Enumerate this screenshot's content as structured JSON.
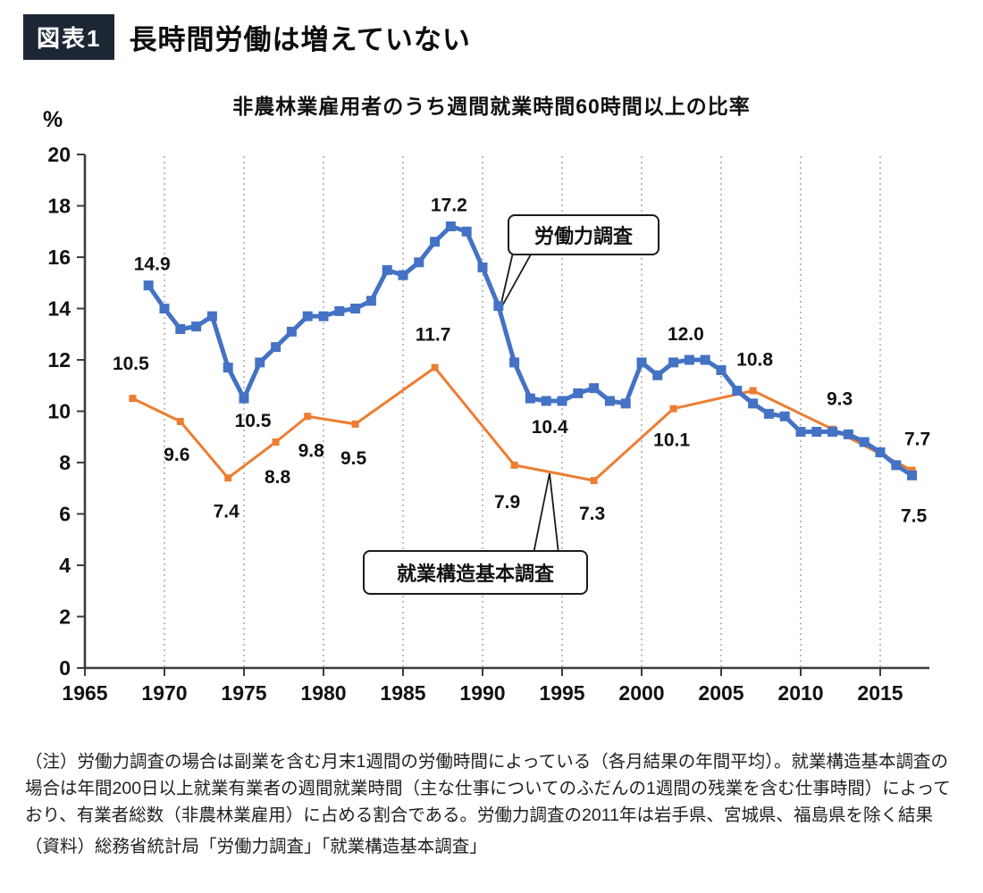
{
  "header": {
    "tag": "図表1",
    "title": "長時間労働は増えていない"
  },
  "chart_data": {
    "type": "line",
    "title": "非農林業雇用者のうち週間就業時間60時間以上の比率",
    "unit_label": "%",
    "ylim": [
      0,
      20
    ],
    "ytick_step": 2,
    "xticks": [
      1965,
      1970,
      1975,
      1980,
      1985,
      1990,
      1995,
      2000,
      2005,
      2010,
      2015
    ],
    "grid": "vertical-dotted",
    "legend_position": "callout-boxes-on-plot",
    "series": [
      {
        "name": "労働力調査",
        "color": "#4472C4",
        "line_width": 5,
        "marker": "square",
        "marker_size": 11,
        "x": [
          1969,
          1970,
          1971,
          1972,
          1973,
          1974,
          1975,
          1976,
          1977,
          1978,
          1979,
          1980,
          1981,
          1982,
          1983,
          1984,
          1985,
          1986,
          1987,
          1988,
          1989,
          1990,
          1991,
          1992,
          1993,
          1994,
          1995,
          1996,
          1997,
          1998,
          1999,
          2000,
          2001,
          2002,
          2003,
          2004,
          2005,
          2006,
          2007,
          2008,
          2009,
          2010,
          2011,
          2012,
          2013,
          2014,
          2015,
          2016,
          2017
        ],
        "values": [
          14.9,
          14.0,
          13.2,
          13.3,
          13.7,
          11.7,
          10.5,
          11.9,
          12.5,
          13.1,
          13.7,
          13.7,
          13.9,
          14.0,
          14.3,
          15.5,
          15.3,
          15.8,
          16.6,
          17.2,
          17.0,
          15.6,
          14.1,
          11.9,
          10.5,
          10.4,
          10.4,
          10.7,
          10.9,
          10.4,
          10.3,
          11.9,
          11.4,
          11.9,
          12.0,
          12.0,
          11.6,
          10.8,
          10.3,
          9.9,
          9.8,
          9.2,
          9.2,
          9.2,
          9.1,
          8.8,
          8.4,
          7.9,
          7.5
        ],
        "point_labels": [
          {
            "year": 1969,
            "text": "14.9",
            "dx": 4,
            "dy": -17
          },
          {
            "year": 1975,
            "text": "10.5",
            "dx": 10,
            "dy": 32
          },
          {
            "year": 1988,
            "text": "17.2",
            "dx": -2,
            "dy": -17
          },
          {
            "year": 1994,
            "text": "10.4",
            "dx": 4,
            "dy": 36
          },
          {
            "year": 2003,
            "text": "12.0",
            "dx": -4,
            "dy": -22
          },
          {
            "year": 2017,
            "text": "7.5",
            "dx": 2,
            "dy": 52
          }
        ]
      },
      {
        "name": "就業構造基本調査",
        "color": "#ED7D31",
        "line_width": 3,
        "marker": "square",
        "marker_size": 8,
        "x": [
          1968,
          1971,
          1974,
          1977,
          1979,
          1982,
          1987,
          1992,
          1997,
          2002,
          2007,
          2012,
          2017
        ],
        "values": [
          10.5,
          9.6,
          7.4,
          8.8,
          9.8,
          9.5,
          11.7,
          7.9,
          7.3,
          10.1,
          10.8,
          9.3,
          7.7
        ],
        "point_labels": [
          {
            "year": 1968,
            "text": "10.5",
            "dx": -2,
            "dy": -32
          },
          {
            "year": 1971,
            "text": "9.6",
            "dx": -4,
            "dy": 44
          },
          {
            "year": 1974,
            "text": "7.4",
            "dx": -2,
            "dy": 44
          },
          {
            "year": 1977,
            "text": "8.8",
            "dx": 2,
            "dy": 46
          },
          {
            "year": 1979,
            "text": "9.8",
            "dx": 4,
            "dy": 45
          },
          {
            "year": 1982,
            "text": "9.5",
            "dx": -2,
            "dy": 45
          },
          {
            "year": 1987,
            "text": "11.7",
            "dx": -2,
            "dy": -30
          },
          {
            "year": 1992,
            "text": "7.9",
            "dx": -8,
            "dy": 48
          },
          {
            "year": 1997,
            "text": "7.3",
            "dx": -2,
            "dy": 44
          },
          {
            "year": 2002,
            "text": "10.1",
            "dx": -2,
            "dy": 42
          },
          {
            "year": 2007,
            "text": "10.8",
            "dx": 2,
            "dy": -28
          },
          {
            "year": 2012,
            "text": "9.3",
            "dx": 8,
            "dy": -27
          },
          {
            "year": 2017,
            "text": "7.7",
            "dx": 6,
            "dy": -28
          }
        ]
      }
    ]
  },
  "notes": {
    "note": "（注）労働力調査の場合は副業を含む月末1週間の労働時間によっている（各月結果の年間平均）。就業構造基本調査の場合は年間200日以上就業有業者の週間就業時間（主な仕事についてのふだんの1週間の残業を含む仕事時間）によっており、有業者総数（非農林業雇用）に占める割合である。労働力調査の2011年は岩手県、宮城県、福島県を除く結果",
    "source": "（資料）総務省統計局「労働力調査」「就業構造基本調査」"
  }
}
